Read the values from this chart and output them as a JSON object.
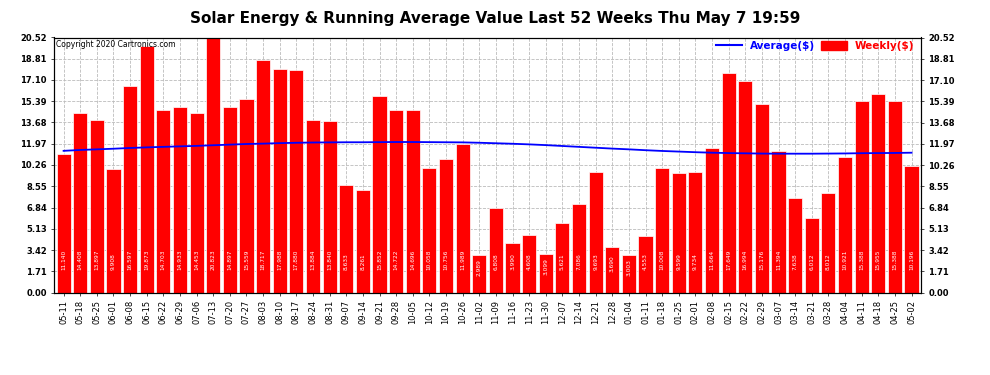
{
  "title": "Solar Energy & Running Average Value Last 52 Weeks Thu May 7 19:59",
  "copyright": "Copyright 2020 Cartronics.com",
  "legend_average": "Average($)",
  "legend_weekly": "Weekly($)",
  "bar_color": "#FF0000",
  "avg_line_color": "#0000FF",
  "background_color": "#FFFFFF",
  "grid_color": "#BBBBBB",
  "yticks": [
    0.0,
    1.71,
    3.42,
    5.13,
    6.84,
    8.55,
    10.26,
    11.97,
    13.68,
    15.39,
    17.1,
    18.81,
    20.52
  ],
  "xlabels": [
    "05-11",
    "05-18",
    "05-25",
    "06-01",
    "06-08",
    "06-15",
    "06-22",
    "06-29",
    "07-06",
    "07-13",
    "07-20",
    "07-27",
    "08-03",
    "08-10",
    "08-17",
    "08-24",
    "08-31",
    "09-07",
    "09-14",
    "09-21",
    "09-28",
    "10-05",
    "10-12",
    "10-19",
    "10-26",
    "11-02",
    "11-09",
    "11-16",
    "11-23",
    "11-30",
    "12-07",
    "12-14",
    "12-21",
    "12-28",
    "01-04",
    "01-11",
    "01-18",
    "01-25",
    "02-01",
    "02-08",
    "02-15",
    "02-22",
    "02-29",
    "03-07",
    "03-14",
    "03-21",
    "03-28",
    "04-04",
    "04-11",
    "04-18",
    "04-25",
    "05-02"
  ],
  "bar_values": [
    11.14,
    14.408,
    13.897,
    9.908,
    16.597,
    19.873,
    14.703,
    14.933,
    14.453,
    20.823,
    14.897,
    15.559,
    18.717,
    17.988,
    17.88,
    13.884,
    13.84,
    8.633,
    8.261,
    15.852,
    14.722,
    14.696,
    10.058,
    10.756,
    11.989,
    2.989,
    6.808,
    3.99,
    4.608,
    3.099,
    5.621,
    7.086,
    9.693,
    3.69,
    3.003,
    4.553,
    10.008,
    9.599,
    9.734,
    11.664,
    17.649,
    16.994,
    15.176,
    11.394,
    7.638,
    6.012,
    8.012,
    10.921,
    15.388,
    15.955,
    15.388,
    10.196
  ],
  "avg_values": [
    11.4,
    11.47,
    11.52,
    11.57,
    11.63,
    11.68,
    11.72,
    11.76,
    11.8,
    11.85,
    11.9,
    11.95,
    11.98,
    12.02,
    12.05,
    12.07,
    12.08,
    12.09,
    12.09,
    12.1,
    12.11,
    12.11,
    12.1,
    12.09,
    12.08,
    12.05,
    12.01,
    11.97,
    11.92,
    11.86,
    11.79,
    11.72,
    11.65,
    11.58,
    11.52,
    11.45,
    11.39,
    11.34,
    11.29,
    11.25,
    11.22,
    11.2,
    11.18,
    11.17,
    11.17,
    11.17,
    11.18,
    11.19,
    11.21,
    11.22,
    11.23,
    11.25
  ],
  "ylim_max": 20.52,
  "title_fontsize": 11,
  "tick_fontsize": 6,
  "bar_label_fontsize": 4.2,
  "bar_width": 0.85
}
